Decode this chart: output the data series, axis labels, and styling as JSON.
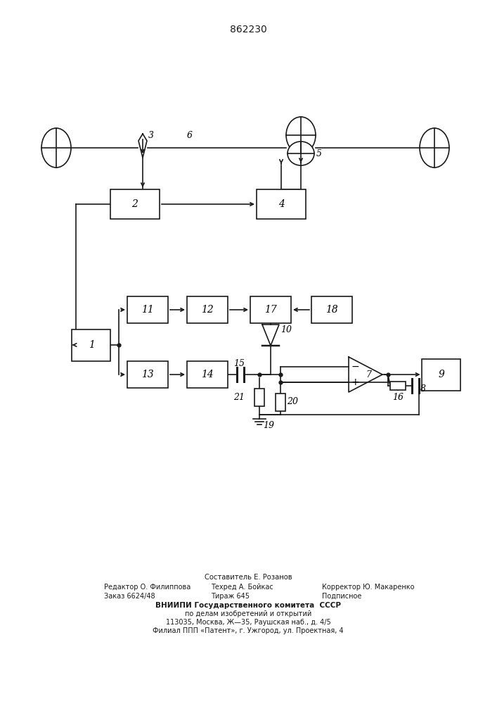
{
  "title": "862230",
  "title_fontsize": 10,
  "background_color": "#ffffff",
  "line_color": "#1a1a1a",
  "footer": {
    "line1_center": "Составитель Е. Розанов",
    "line2_left": "Редактор О. Филиппова",
    "line2_mid": "Техред А. Бойкас",
    "line2_right": "Корректор Ю. Макаренко",
    "line3_left": "Заказ 6624/48",
    "line3_mid": "Тираж 645",
    "line3_right": "Подписное",
    "line4": "ВНИИПИ Государственного комитета  СССР",
    "line5": "по делам изобретений и открытий",
    "line6": "113035, Москва, Ж—35, Раушская наб., д. 4/5",
    "line7": "Филиал ППП «Патент», г. Ужгород, ул. Проектная, 4"
  }
}
